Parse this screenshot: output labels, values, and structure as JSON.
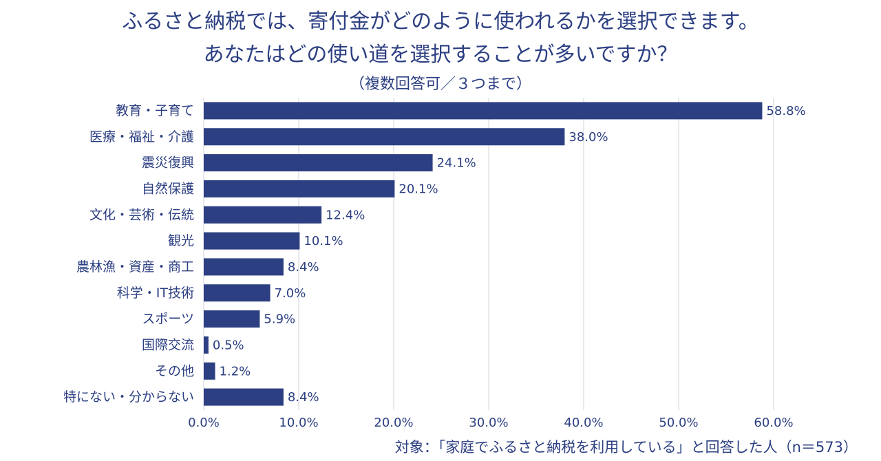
{
  "chart_data": {
    "type": "bar",
    "orientation": "horizontal",
    "title_line1": "ふるさと納税では、寄付金がどのように使われるかを選択できます。",
    "title_line2": "あなたはどの使い道を選択することが多いですか？",
    "subtitle": "（複数回答可／３つまで）",
    "categories": [
      "教育・子育て",
      "医療・福祉・介護",
      "震災復興",
      "自然保護",
      "文化・芸術・伝統",
      "観光",
      "農林漁・資産・商工",
      "科学・IT技術",
      "スポーツ",
      "国際交流",
      "その他",
      "特にない・分からない"
    ],
    "values": [
      58.8,
      38.0,
      24.1,
      20.1,
      12.4,
      10.1,
      8.4,
      7.0,
      5.9,
      0.5,
      1.2,
      8.4
    ],
    "value_labels": [
      "58.8%",
      "38.0%",
      "24.1%",
      "20.1%",
      "12.4%",
      "10.1%",
      "8.4%",
      "7.0%",
      "5.9%",
      "0.5%",
      "1.2%",
      "8.4%"
    ],
    "xlim": [
      0,
      60
    ],
    "x_ticks": [
      0,
      10,
      20,
      30,
      40,
      50,
      60
    ],
    "x_tick_labels": [
      "0.0%",
      "10.0%",
      "20.0%",
      "30.0%",
      "40.0%",
      "50.0%",
      "60.0%"
    ],
    "grid": true,
    "bar_color": "#2c3f82",
    "grid_color": "#d9d9e3",
    "text_color": "#2c3f82",
    "footnote": "対象：「家庭でふるさと納税を利用している」と回答した人（n＝573）"
  }
}
